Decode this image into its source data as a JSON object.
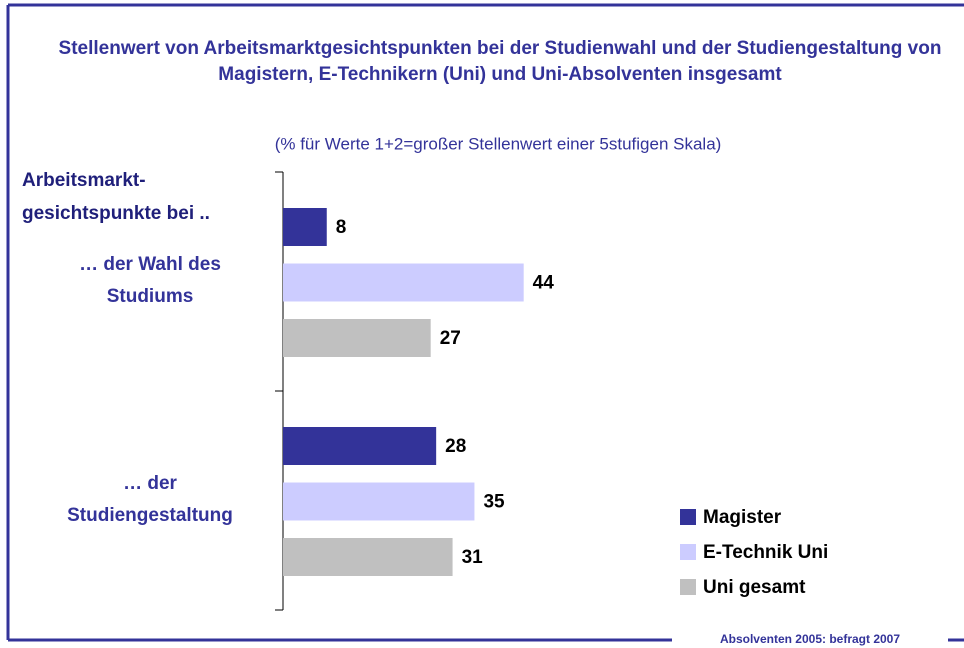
{
  "chart_data": {
    "type": "hbar",
    "title": "Stellenwert von Arbeitsmarktgesichtspunkten bei der Studienwahl und der Studiengestaltung von  Magistern, E-Technikern (Uni) und Uni-Absolventen insgesamt",
    "subtitle": "(% für Werte 1+2=großer Stellenwert einer 5stufigen Skala)",
    "y_label": "Arbeitsmarkt-gesichtspunkte bei ..",
    "categories": [
      "… der Wahl des Studiums",
      "… der Studiengestaltung"
    ],
    "series": [
      {
        "name": "Magister",
        "color": "#333399",
        "values": [
          8,
          28
        ]
      },
      {
        "name": "E-Technik Uni",
        "color": "#ccccff",
        "values": [
          44,
          35
        ]
      },
      {
        "name": "Uni gesamt",
        "color": "#c0c0c0",
        "values": [
          27,
          31
        ]
      }
    ],
    "legend": "bottom-right",
    "footer": "Absolventen 2005: befragt 2007"
  }
}
